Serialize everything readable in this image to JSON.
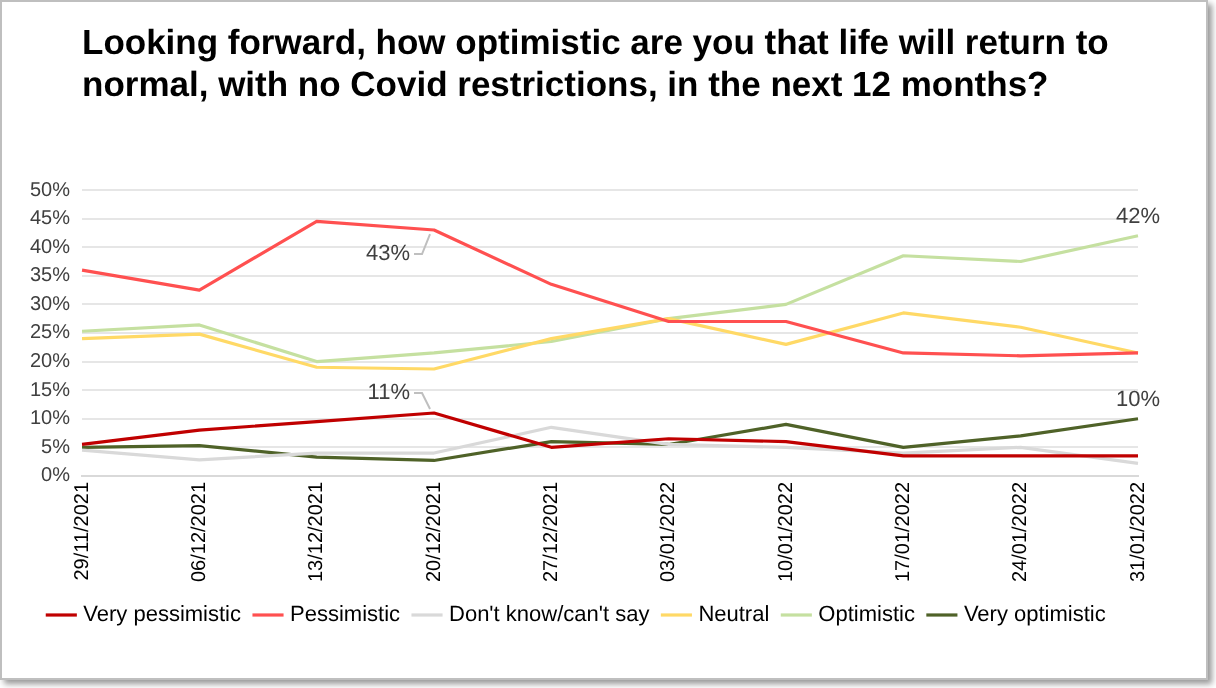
{
  "chart_data": {
    "type": "line",
    "title": "Looking forward, how optimistic are you that life will return to normal, with no Covid restrictions, in the next 12 months?",
    "categories": [
      "29/11/2021",
      "06/12/2021",
      "13/12/2021",
      "20/12/2021",
      "27/12/2021",
      "03/01/2022",
      "10/01/2022",
      "17/01/2022",
      "24/01/2022",
      "31/01/2022"
    ],
    "series": [
      {
        "name": "Very pessimistic",
        "color": "#c00000",
        "values": [
          5.5,
          8,
          9.5,
          11,
          5,
          6.5,
          6,
          3.5,
          3.5,
          3.5
        ],
        "value_labels": [
          null,
          null,
          null,
          "11%",
          null,
          null,
          null,
          null,
          null,
          null
        ]
      },
      {
        "name": "Pessimistic",
        "color": "#ff5050",
        "values": [
          36,
          32.5,
          44.5,
          43,
          33.5,
          27,
          27,
          21.5,
          21,
          21.5
        ],
        "value_labels": [
          null,
          null,
          null,
          "43%",
          null,
          null,
          null,
          null,
          null,
          null
        ]
      },
      {
        "name": "Don't know/can't say",
        "color": "#d9d9d9",
        "values": [
          4.5,
          2.8,
          4,
          4,
          8.5,
          5.5,
          5,
          4,
          5,
          2.2
        ]
      },
      {
        "name": "Neutral",
        "color": "#ffd966",
        "values": [
          24,
          24.8,
          19,
          18.7,
          24,
          27.5,
          23,
          28.5,
          26,
          21.5
        ]
      },
      {
        "name": "Optimistic",
        "color": "#c5e0a0",
        "values": [
          25.3,
          26.4,
          20,
          21.5,
          23.5,
          27.5,
          30,
          38.5,
          37.5,
          42
        ],
        "value_labels": [
          null,
          null,
          null,
          null,
          null,
          null,
          null,
          null,
          null,
          "42%"
        ]
      },
      {
        "name": "Very optimistic",
        "color": "#4f6228",
        "values": [
          5,
          5.3,
          3.3,
          2.7,
          6,
          5.5,
          9,
          5,
          7,
          10
        ],
        "value_labels": [
          null,
          null,
          null,
          null,
          null,
          null,
          null,
          null,
          null,
          "10%"
        ]
      }
    ],
    "ylim": [
      0,
      50
    ],
    "yticks": [
      {
        "value": 0,
        "label": "0%"
      },
      {
        "value": 5,
        "label": "5%"
      },
      {
        "value": 10,
        "label": "10%"
      },
      {
        "value": 15,
        "label": "15%"
      },
      {
        "value": 20,
        "label": "20%"
      },
      {
        "value": 25,
        "label": "25%"
      },
      {
        "value": 30,
        "label": "30%"
      },
      {
        "value": 35,
        "label": "35%"
      },
      {
        "value": 40,
        "label": "40%"
      },
      {
        "value": 45,
        "label": "45%"
      },
      {
        "value": 50,
        "label": "50%"
      }
    ],
    "grid": "y",
    "legend": "bottom",
    "marker": "none",
    "line_style": "solid"
  }
}
